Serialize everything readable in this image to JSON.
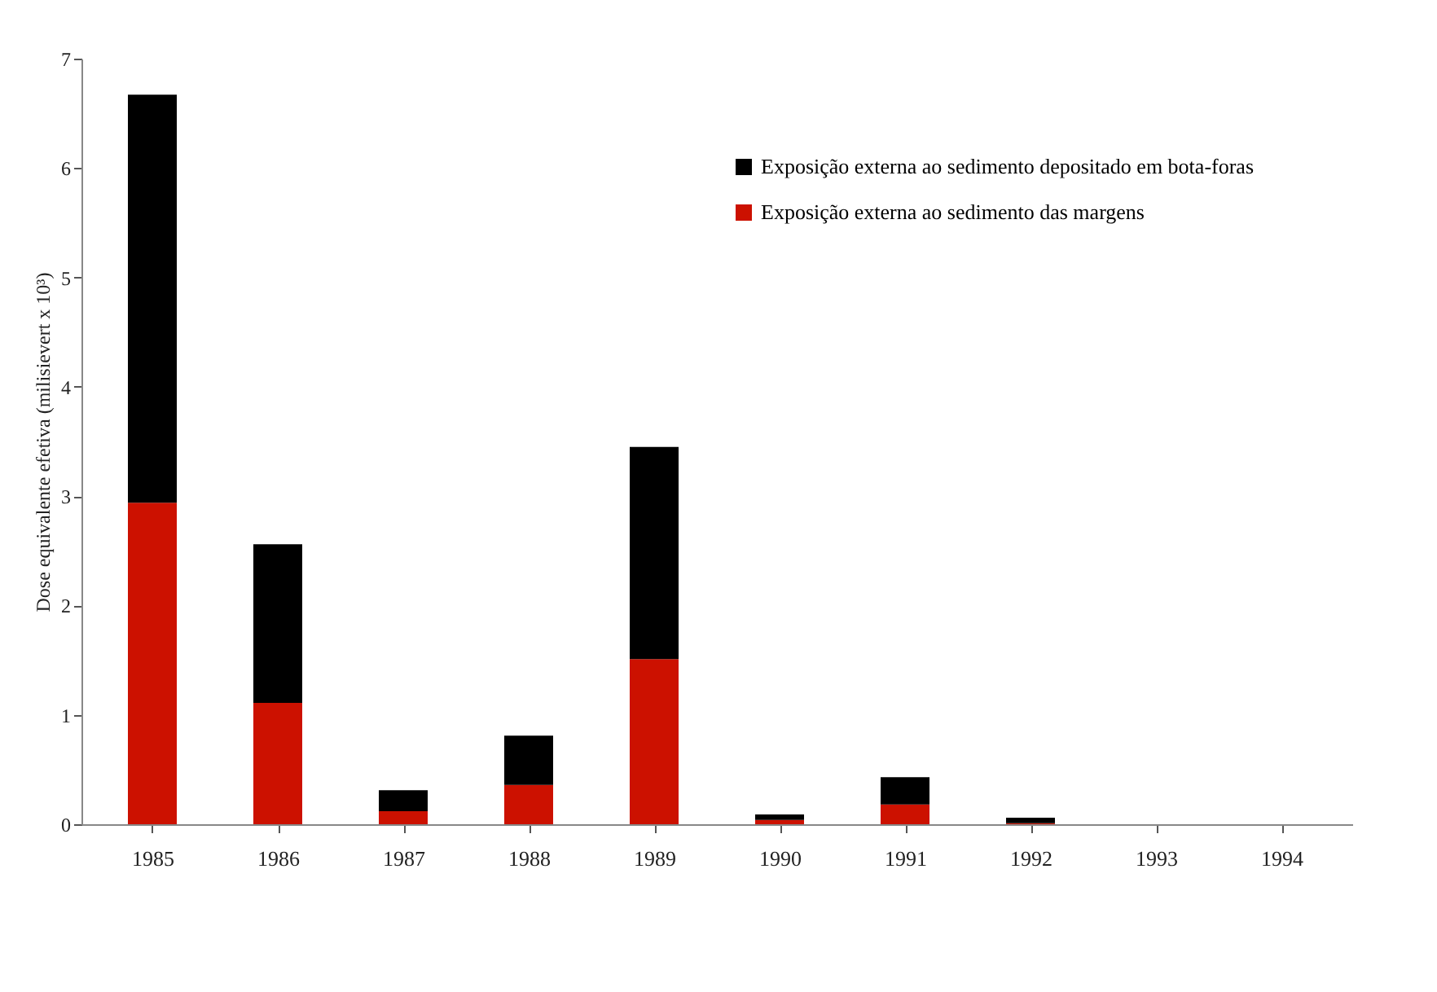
{
  "chart_data": {
    "type": "bar",
    "stacked": true,
    "ylabel": "Dose equivalente efetiva (milisievert x 10³)",
    "categories": [
      "1985",
      "1986",
      "1987",
      "1988",
      "1989",
      "1990",
      "1991",
      "1992",
      "1993",
      "1994"
    ],
    "series": [
      {
        "name": "Exposição externa ao sedimento das margens",
        "color": "#cc1100",
        "values": [
          2.94,
          1.11,
          0.12,
          0.36,
          1.51,
          0.04,
          0.18,
          0.01,
          0,
          0
        ]
      },
      {
        "name": "Exposição externa ao sedimento depositado em bota-foras",
        "color": "#000000",
        "values": [
          3.73,
          1.45,
          0.19,
          0.45,
          1.94,
          0.05,
          0.25,
          0.05,
          0,
          0
        ]
      }
    ],
    "ylim": [
      0,
      7
    ],
    "yticks": [
      0,
      1,
      2,
      3,
      4,
      5,
      6,
      7
    ],
    "grid": false,
    "legend": "top right"
  }
}
